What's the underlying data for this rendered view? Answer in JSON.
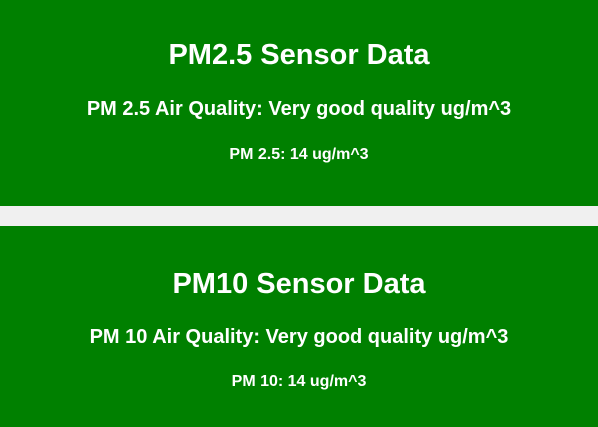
{
  "pm25": {
    "title": "PM2.5 Sensor Data",
    "quality_label": "PM 2.5 Air Quality: Very good quality ug/m^3",
    "reading_label": "PM 2.5: 14 ug/m^3"
  },
  "pm10": {
    "title": "PM10 Sensor Data",
    "quality_label": "PM 10 Air Quality: Very good quality ug/m^3",
    "reading_label": "PM 10: 14 ug/m^3"
  },
  "colors": {
    "panel_background": "#008000",
    "page_background": "#f0f0f0",
    "text": "#ffffff"
  }
}
